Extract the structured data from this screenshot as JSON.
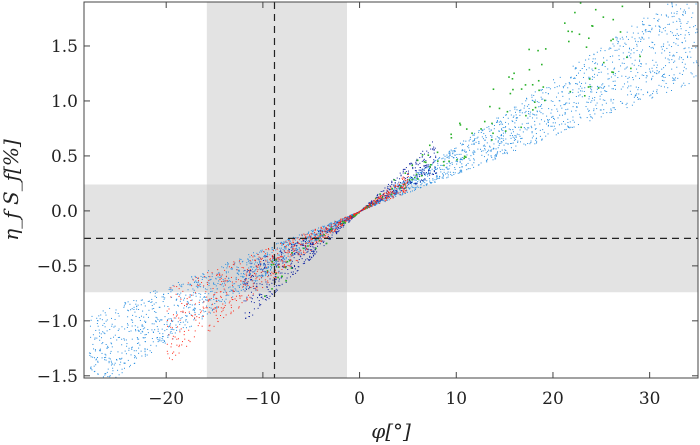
{
  "chart_data": {
    "type": "scatter",
    "title": "",
    "xlabel": "φ[°]",
    "ylabel": "η_f S_f[%]",
    "xlim": [
      -28.5,
      35
    ],
    "ylim": [
      -1.52,
      1.9
    ],
    "xticks": [
      -20,
      -10,
      0,
      10,
      20,
      30
    ],
    "yticks": [
      -1.5,
      -1.0,
      -0.5,
      0.0,
      0.5,
      1.0,
      1.5
    ],
    "xtick_labels": [
      "−20",
      "−10",
      "0",
      "10",
      "20",
      "30"
    ],
    "ytick_labels": [
      "−1.5",
      "−1.0",
      "−0.5",
      "0.0",
      "0.5",
      "1.0",
      "1.5"
    ],
    "grid": false,
    "legend": "none",
    "reference_lines": [
      {
        "orientation": "vertical",
        "value": -8.8,
        "style": "dashed"
      },
      {
        "orientation": "horizontal",
        "value": -0.25,
        "style": "dashed"
      }
    ],
    "shaded_bands": [
      {
        "orientation": "vertical",
        "from": -15.8,
        "to": -1.3,
        "color": "#c8c8c8"
      },
      {
        "orientation": "horizontal",
        "from": -0.74,
        "to": 0.24,
        "color": "#c8c8c8"
      }
    ],
    "series": [
      {
        "color": "#2a8fe0",
        "slope_range": [
          0.034,
          0.06
        ],
        "x_range": [
          -28,
          35
        ],
        "density": "dense"
      },
      {
        "color": "#0a1fa0",
        "slope_range": [
          0.042,
          0.085
        ],
        "x_range": [
          -12,
          8
        ],
        "density": "medium"
      },
      {
        "color": "#28b028",
        "slope_range": [
          0.045,
          0.085
        ],
        "x_range": [
          -10,
          30
        ],
        "density": "sparse"
      },
      {
        "color": "#ff2a1a",
        "slope_range": [
          0.035,
          0.07
        ],
        "x_range": [
          -20,
          5
        ],
        "density": "medium"
      }
    ]
  }
}
